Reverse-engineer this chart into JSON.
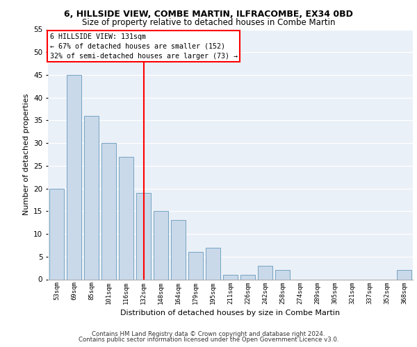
{
  "title1": "6, HILLSIDE VIEW, COMBE MARTIN, ILFRACOMBE, EX34 0BD",
  "title2": "Size of property relative to detached houses in Combe Martin",
  "xlabel": "Distribution of detached houses by size in Combe Martin",
  "ylabel": "Number of detached properties",
  "categories": [
    "53sqm",
    "69sqm",
    "85sqm",
    "101sqm",
    "116sqm",
    "132sqm",
    "148sqm",
    "164sqm",
    "179sqm",
    "195sqm",
    "211sqm",
    "226sqm",
    "242sqm",
    "258sqm",
    "274sqm",
    "289sqm",
    "305sqm",
    "321sqm",
    "337sqm",
    "352sqm",
    "368sqm"
  ],
  "values": [
    20,
    45,
    36,
    30,
    27,
    19,
    15,
    13,
    6,
    7,
    1,
    1,
    3,
    2,
    0,
    0,
    0,
    0,
    0,
    0,
    2
  ],
  "bar_color": "#c9d9ea",
  "bar_edge_color": "#6699bb",
  "red_line_index": 5,
  "annotation_line1": "6 HILLSIDE VIEW: 131sqm",
  "annotation_line2": "← 67% of detached houses are smaller (152)",
  "annotation_line3": "32% of semi-detached houses are larger (73) →",
  "ylim": [
    0,
    55
  ],
  "yticks": [
    0,
    5,
    10,
    15,
    20,
    25,
    30,
    35,
    40,
    45,
    50,
    55
  ],
  "background_color": "#eaf0f7",
  "footer1": "Contains HM Land Registry data © Crown copyright and database right 2024.",
  "footer2": "Contains public sector information licensed under the Open Government Licence v3.0."
}
